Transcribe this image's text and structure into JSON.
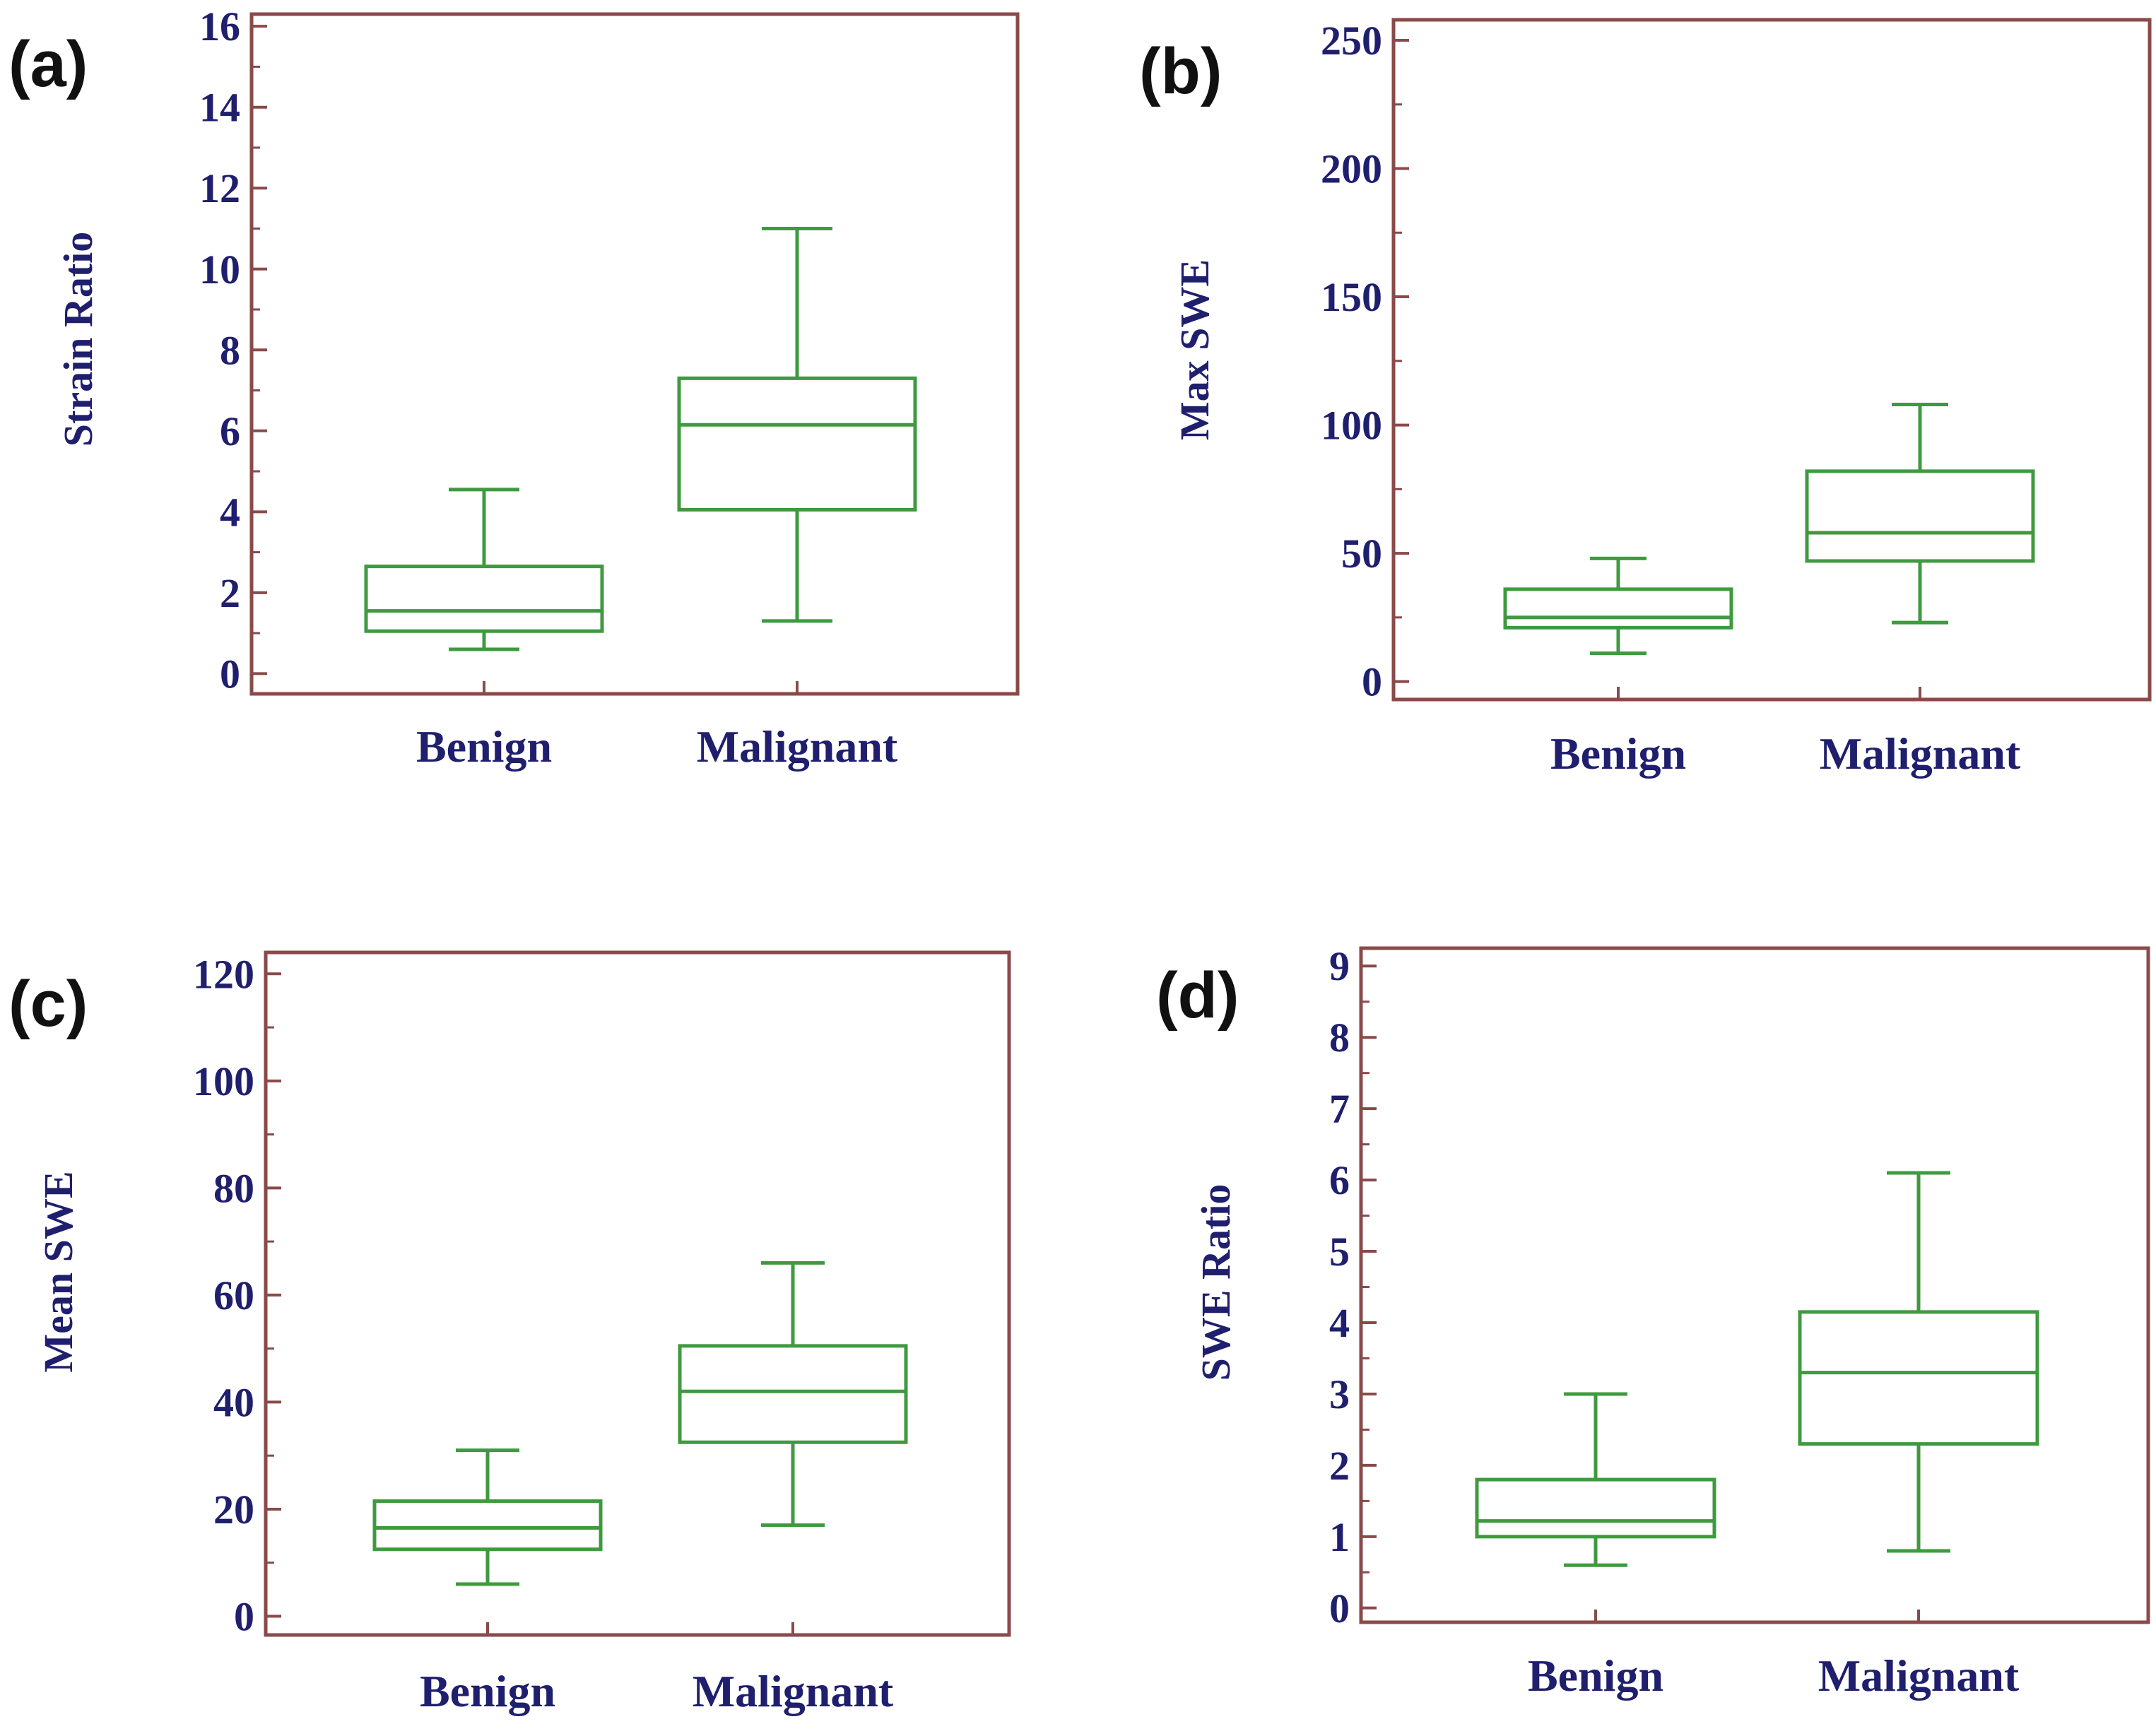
{
  "colors": {
    "frame": "#8a4a4a",
    "box": "#3f9a3f",
    "text": "#1f1f6e",
    "letter": "#111111"
  },
  "chart_data": [
    {
      "type": "box",
      "panel_label": "(a)",
      "title": "",
      "xlabel": "",
      "ylabel": "Strain Ratio",
      "ylim": [
        -0.5,
        16.3
      ],
      "yticks": [
        0,
        2,
        4,
        6,
        8,
        10,
        12,
        14,
        16
      ],
      "categories": [
        "Benign",
        "Malignant"
      ],
      "boxes": [
        {
          "name": "Benign",
          "whisker_low": 0.6,
          "q1": 1.05,
          "median": 1.55,
          "q3": 2.65,
          "whisker_high": 4.55
        },
        {
          "name": "Malignant",
          "whisker_low": 1.3,
          "q1": 4.05,
          "median": 6.15,
          "q3": 7.3,
          "whisker_high": 11.0
        }
      ]
    },
    {
      "type": "box",
      "panel_label": "(b)",
      "title": "",
      "xlabel": "",
      "ylabel": "Max SWE",
      "ylim": [
        -7,
        258
      ],
      "yticks": [
        0,
        50,
        100,
        150,
        200,
        250
      ],
      "categories": [
        "Benign",
        "Malignant"
      ],
      "boxes": [
        {
          "name": "Benign",
          "whisker_low": 11,
          "q1": 21,
          "median": 25,
          "q3": 36,
          "whisker_high": 48
        },
        {
          "name": "Malignant",
          "whisker_low": 23,
          "q1": 47,
          "median": 58,
          "q3": 82,
          "whisker_high": 108
        }
      ]
    },
    {
      "type": "box",
      "panel_label": "(c)",
      "title": "",
      "xlabel": "",
      "ylabel": "Mean SWE",
      "ylim": [
        -3.5,
        124
      ],
      "yticks": [
        0,
        20,
        40,
        60,
        80,
        100,
        120
      ],
      "categories": [
        "Benign",
        "Malignant"
      ],
      "boxes": [
        {
          "name": "Benign",
          "whisker_low": 6,
          "q1": 12.5,
          "median": 16.5,
          "q3": 21.5,
          "whisker_high": 31
        },
        {
          "name": "Malignant",
          "whisker_low": 17,
          "q1": 32.5,
          "median": 42,
          "q3": 50.5,
          "whisker_high": 66
        }
      ]
    },
    {
      "type": "box",
      "panel_label": "(d)",
      "title": "",
      "xlabel": "",
      "ylabel": "SWE Ratio",
      "ylim": [
        -0.2,
        9.25
      ],
      "yticks": [
        0,
        1,
        2,
        3,
        4,
        5,
        6,
        7,
        8,
        9
      ],
      "categories": [
        "Benign",
        "Malignant"
      ],
      "boxes": [
        {
          "name": "Benign",
          "whisker_low": 0.6,
          "q1": 1.0,
          "median": 1.22,
          "q3": 1.8,
          "whisker_high": 3.0
        },
        {
          "name": "Malignant",
          "whisker_low": 0.8,
          "q1": 2.3,
          "median": 3.3,
          "q3": 4.15,
          "whisker_high": 6.1
        }
      ]
    }
  ]
}
